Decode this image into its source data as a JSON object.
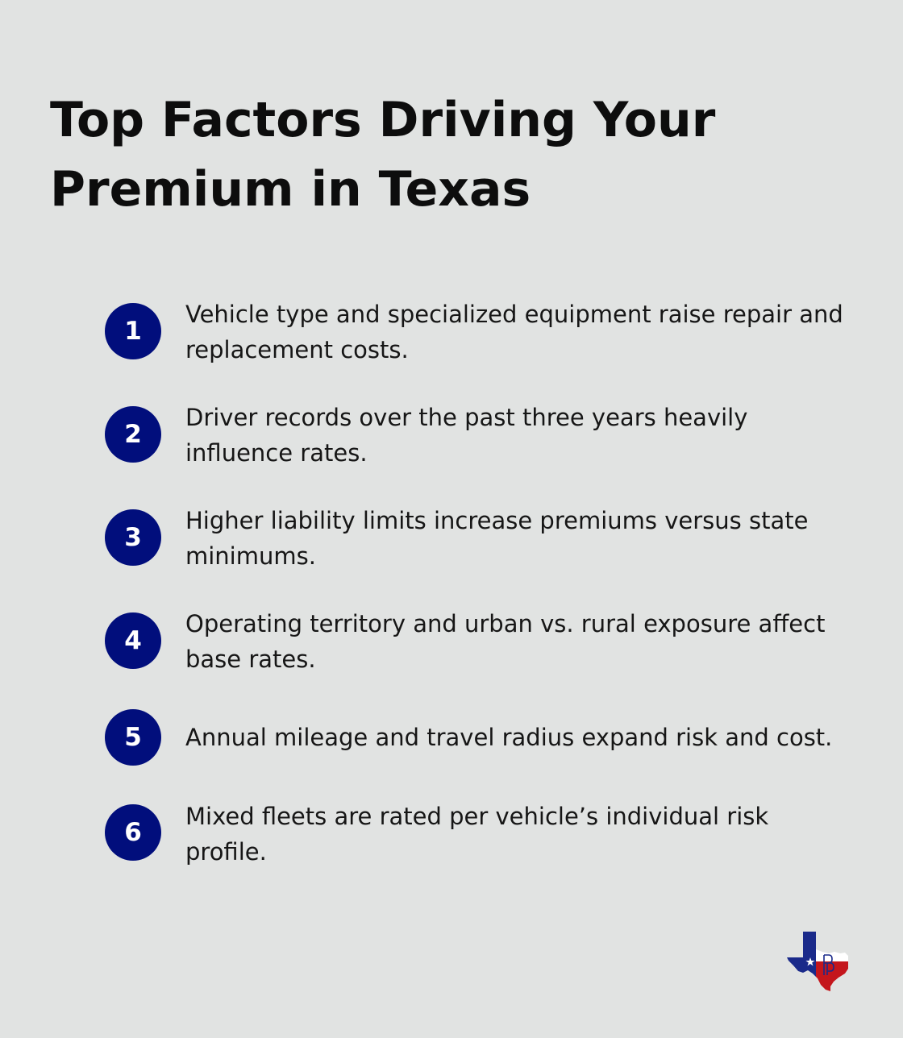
{
  "title": "Top Factors Driving Your Premium in Texas",
  "factors": [
    {
      "number": "1",
      "text": "Vehicle type and specialized equipment raise repair and replacement costs."
    },
    {
      "number": "2",
      "text": "Driver records over the past three years heavily influence rates."
    },
    {
      "number": "3",
      "text": "Higher liability limits increase premiums versus state minimums."
    },
    {
      "number": "4",
      "text": "Operating territory and urban vs. rural exposure affect base rates."
    },
    {
      "number": "5",
      "text": "Annual mileage and travel radius expand risk and cost."
    },
    {
      "number": "6",
      "text": "Mixed fleets are rated per vehicle’s individual risk profile."
    }
  ],
  "logo": {
    "icon": "texas-flag-map-icon",
    "colors": {
      "blue": "#1a2a8a",
      "red": "#c4161c",
      "white": "#ffffff"
    }
  },
  "colors": {
    "background": "#e1e3e2",
    "badge": "#010e7c",
    "title": "#0d0d0d"
  }
}
